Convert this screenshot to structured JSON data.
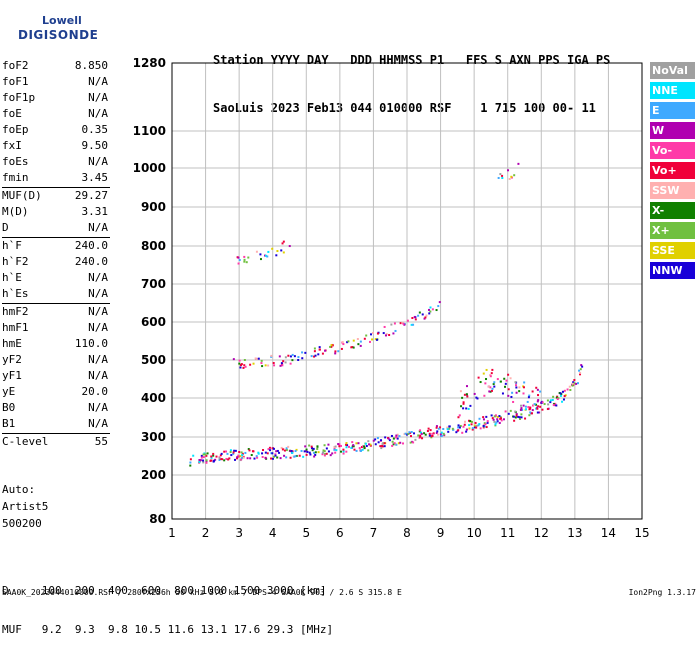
{
  "logo": {
    "line1": "Lowell",
    "line2": "DIGISONDE"
  },
  "header": {
    "line1": "Station YYYY DAY   DDD HHMMSS P1   FFS S AXN PPS IGA PS",
    "line2": "SaoLuis 2023 Feb13 044 010000 RSF    1 715 100 00- 11"
  },
  "params": [
    {
      "name": "foF2",
      "value": "8.850"
    },
    {
      "name": "foF1",
      "value": "N/A"
    },
    {
      "name": "foF1p",
      "value": "N/A"
    },
    {
      "name": "foE",
      "value": "N/A"
    },
    {
      "name": "foEp",
      "value": "0.35"
    },
    {
      "name": "fxI",
      "value": "9.50"
    },
    {
      "name": "foEs",
      "value": "N/A"
    },
    {
      "name": "fmin",
      "value": "3.45"
    },
    {
      "sep": true
    },
    {
      "name": "MUF(D)",
      "value": "29.27"
    },
    {
      "name": "M(D)",
      "value": "3.31"
    },
    {
      "name": "D",
      "value": "N/A"
    },
    {
      "sep": true
    },
    {
      "name": "h`F",
      "value": "240.0"
    },
    {
      "name": "h`F2",
      "value": "240.0"
    },
    {
      "name": "h`E",
      "value": "N/A"
    },
    {
      "name": "h`Es",
      "value": "N/A"
    },
    {
      "sep": true
    },
    {
      "name": "hmF2",
      "value": "N/A"
    },
    {
      "name": "hmF1",
      "value": "N/A"
    },
    {
      "name": "hmE",
      "value": "110.0"
    },
    {
      "name": "yF2",
      "value": "N/A"
    },
    {
      "name": "yF1",
      "value": "N/A"
    },
    {
      "name": "yE",
      "value": "20.0"
    },
    {
      "name": "B0",
      "value": "N/A"
    },
    {
      "name": "B1",
      "value": "N/A"
    },
    {
      "sep": true
    },
    {
      "name": "C-level",
      "value": "55"
    }
  ],
  "extra": {
    "auto": "Auto:",
    "artist": "Artist5",
    "code": "500200"
  },
  "legend": [
    {
      "label": "NoVal",
      "color": "#a0a0a0"
    },
    {
      "label": "NNE",
      "color": "#00e5ff"
    },
    {
      "label": "E",
      "color": "#3fa9ff"
    },
    {
      "label": "W",
      "color": "#b000b0"
    },
    {
      "label": "Vo-",
      "color": "#ff3aa8"
    },
    {
      "label": "Vo+",
      "color": "#f0003a"
    },
    {
      "label": "SSW",
      "color": "#ffb0b0"
    },
    {
      "label": "X-",
      "color": "#108000"
    },
    {
      "label": "X+",
      "color": "#70c040"
    },
    {
      "label": "SSE",
      "color": "#e0d000"
    },
    {
      "label": "NNW",
      "color": "#1800d8"
    }
  ],
  "chart_data": {
    "type": "scatter",
    "title": "",
    "xlabel": "",
    "ylabel": "",
    "xlim": [
      1,
      15
    ],
    "ylim": [
      80,
      1280
    ],
    "x_ticks": [
      1,
      2,
      3,
      4,
      5,
      6,
      7,
      8,
      9,
      10,
      11,
      12,
      13,
      14,
      15
    ],
    "y_ticks": [
      80,
      200,
      300,
      400,
      500,
      600,
      700,
      800,
      900,
      1000,
      1100,
      1280
    ],
    "y_scale": "ionogram (compressed above 500 km)",
    "grid": true,
    "legend_position": "right",
    "traces": [
      {
        "name": "F-layer O trace",
        "points": [
          [
            1.5,
            240
          ],
          [
            2.0,
            248
          ],
          [
            2.5,
            252
          ],
          [
            3.0,
            255
          ],
          [
            3.5,
            258
          ],
          [
            4.0,
            260
          ],
          [
            4.5,
            262
          ],
          [
            5.0,
            265
          ],
          [
            5.5,
            268
          ],
          [
            6.0,
            272
          ],
          [
            6.5,
            278
          ],
          [
            7.0,
            285
          ],
          [
            7.5,
            292
          ],
          [
            8.0,
            300
          ],
          [
            8.5,
            310
          ],
          [
            9.0,
            318
          ],
          [
            9.5,
            325
          ],
          [
            10.0,
            335
          ],
          [
            10.5,
            345
          ],
          [
            11.0,
            355
          ],
          [
            11.5,
            365
          ],
          [
            12.0,
            378
          ],
          [
            12.5,
            400
          ],
          [
            13.0,
            440
          ],
          [
            13.2,
            490
          ]
        ]
      },
      {
        "name": "F-layer spread",
        "points": [
          [
            9.5,
            380
          ],
          [
            10.0,
            420
          ],
          [
            10.5,
            455
          ],
          [
            11.0,
            430
          ],
          [
            11.5,
            410
          ],
          [
            12.0,
            395
          ]
        ]
      },
      {
        "name": "second hop",
        "points": [
          [
            2.8,
            490
          ],
          [
            3.5,
            495
          ],
          [
            4.0,
            500
          ],
          [
            4.5,
            505
          ],
          [
            5.0,
            515
          ],
          [
            5.5,
            525
          ],
          [
            6.0,
            540
          ],
          [
            6.5,
            550
          ],
          [
            7.0,
            565
          ],
          [
            7.5,
            585
          ],
          [
            8.0,
            600
          ],
          [
            8.5,
            625
          ],
          [
            9.0,
            655
          ]
        ]
      },
      {
        "name": "third hop",
        "points": [
          [
            2.8,
            760
          ],
          [
            3.5,
            775
          ],
          [
            4.0,
            790
          ],
          [
            4.5,
            805
          ]
        ]
      },
      {
        "name": "high echoes",
        "points": [
          [
            10.7,
            975
          ],
          [
            11.0,
            985
          ],
          [
            11.3,
            1000
          ]
        ]
      }
    ]
  },
  "bottom_table": {
    "row1_label": "D",
    "row1_values": [
      "100",
      "200",
      "400",
      "600",
      "800",
      "1000",
      "1500",
      "3000"
    ],
    "row1_unit": "[km]",
    "row2_label": "MUF",
    "row2_values": [
      "9.2",
      "9.3",
      "9.8",
      "10.5",
      "11.6",
      "13.1",
      "17.6",
      "29.3"
    ],
    "row2_unit": "[MHz]"
  },
  "footer": {
    "left": "SAA0K_2023044010000.RSF / 280fx256h 50 kHz 5.0 km / DPS-4 SAA0K 903 / 2.6 S 315.8 E",
    "right": "Ion2Png 1.3.17"
  }
}
